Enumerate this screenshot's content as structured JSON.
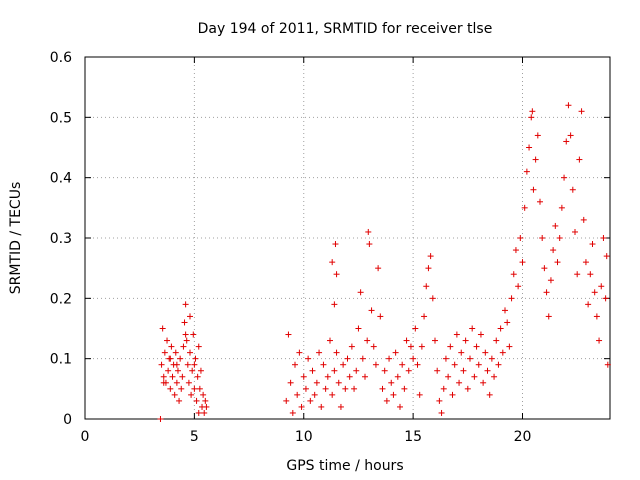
{
  "chart_data": {
    "type": "scatter",
    "title": "Day 194 of 2011, SRMTID for receiver tlse",
    "xlabel": "GPS time / hours",
    "ylabel": "SRMTID / TECUs",
    "xlim": [
      0,
      24
    ],
    "ylim": [
      0,
      0.6
    ],
    "xticks": [
      0,
      5,
      10,
      15,
      20
    ],
    "xtick_labels": [
      "0",
      "5",
      "10",
      "15",
      "20"
    ],
    "yticks": [
      0,
      0.1,
      0.2,
      0.3,
      0.4,
      0.5,
      0.6
    ],
    "ytick_labels": [
      "0",
      "0.1",
      "0.2",
      "0.3",
      "0.4",
      "0.5",
      "0.6"
    ],
    "grid": true,
    "marker": "+",
    "color": "#e00000",
    "series": [
      {
        "name": "SRMTID",
        "points": [
          [
            3.45,
            0.0
          ],
          [
            3.5,
            0.09
          ],
          [
            3.55,
            0.15
          ],
          [
            3.6,
            0.07
          ],
          [
            3.65,
            0.11
          ],
          [
            3.7,
            0.06
          ],
          [
            3.75,
            0.13
          ],
          [
            3.8,
            0.08
          ],
          [
            3.85,
            0.1
          ],
          [
            3.9,
            0.05
          ],
          [
            3.95,
            0.12
          ],
          [
            4.0,
            0.07
          ],
          [
            4.05,
            0.09
          ],
          [
            4.1,
            0.04
          ],
          [
            4.15,
            0.11
          ],
          [
            4.2,
            0.06
          ],
          [
            4.25,
            0.08
          ],
          [
            4.3,
            0.03
          ],
          [
            4.35,
            0.1
          ],
          [
            4.4,
            0.05
          ],
          [
            4.45,
            0.07
          ],
          [
            4.5,
            0.12
          ],
          [
            4.55,
            0.16
          ],
          [
            4.6,
            0.19
          ],
          [
            4.65,
            0.13
          ],
          [
            4.7,
            0.09
          ],
          [
            4.75,
            0.06
          ],
          [
            4.8,
            0.11
          ],
          [
            4.85,
            0.04
          ],
          [
            4.9,
            0.08
          ],
          [
            4.95,
            0.14
          ],
          [
            5.0,
            0.05
          ],
          [
            5.05,
            0.1
          ],
          [
            5.1,
            0.03
          ],
          [
            5.15,
            0.07
          ],
          [
            5.2,
            0.12
          ],
          [
            5.25,
            0.05
          ],
          [
            5.3,
            0.08
          ],
          [
            5.35,
            0.02
          ],
          [
            5.4,
            0.04
          ],
          [
            5.45,
            0.01
          ],
          [
            5.5,
            0.03
          ],
          [
            5.55,
            0.02
          ],
          [
            3.6,
            0.06
          ],
          [
            3.9,
            0.1
          ],
          [
            4.2,
            0.09
          ],
          [
            4.6,
            0.14
          ],
          [
            4.8,
            0.17
          ],
          [
            5.0,
            0.09
          ],
          [
            5.2,
            0.01
          ],
          [
            9.2,
            0.03
          ],
          [
            9.3,
            0.14
          ],
          [
            9.4,
            0.06
          ],
          [
            9.5,
            0.01
          ],
          [
            9.6,
            0.09
          ],
          [
            9.7,
            0.04
          ],
          [
            9.8,
            0.11
          ],
          [
            9.9,
            0.02
          ],
          [
            10.0,
            0.07
          ],
          [
            10.1,
            0.05
          ],
          [
            10.2,
            0.1
          ],
          [
            10.3,
            0.03
          ],
          [
            10.4,
            0.08
          ],
          [
            10.5,
            0.04
          ],
          [
            10.6,
            0.06
          ],
          [
            10.7,
            0.11
          ],
          [
            10.8,
            0.02
          ],
          [
            10.9,
            0.09
          ],
          [
            11.0,
            0.05
          ],
          [
            11.1,
            0.07
          ],
          [
            11.2,
            0.13
          ],
          [
            11.3,
            0.04
          ],
          [
            11.4,
            0.08
          ],
          [
            11.5,
            0.11
          ],
          [
            11.6,
            0.06
          ],
          [
            11.7,
            0.02
          ],
          [
            11.8,
            0.09
          ],
          [
            11.9,
            0.05
          ],
          [
            12.0,
            0.1
          ],
          [
            12.1,
            0.07
          ],
          [
            11.3,
            0.26
          ],
          [
            11.45,
            0.29
          ],
          [
            11.5,
            0.24
          ],
          [
            11.4,
            0.19
          ],
          [
            12.2,
            0.12
          ],
          [
            12.3,
            0.05
          ],
          [
            12.4,
            0.08
          ],
          [
            12.5,
            0.15
          ],
          [
            12.6,
            0.21
          ],
          [
            12.7,
            0.1
          ],
          [
            12.8,
            0.07
          ],
          [
            12.9,
            0.13
          ],
          [
            12.95,
            0.31
          ],
          [
            13.0,
            0.29
          ],
          [
            13.1,
            0.18
          ],
          [
            13.2,
            0.12
          ],
          [
            13.3,
            0.09
          ],
          [
            13.4,
            0.25
          ],
          [
            13.5,
            0.17
          ],
          [
            13.6,
            0.05
          ],
          [
            13.7,
            0.08
          ],
          [
            13.8,
            0.03
          ],
          [
            13.9,
            0.1
          ],
          [
            14.0,
            0.06
          ],
          [
            14.1,
            0.04
          ],
          [
            14.2,
            0.11
          ],
          [
            14.3,
            0.07
          ],
          [
            14.4,
            0.02
          ],
          [
            14.5,
            0.09
          ],
          [
            14.6,
            0.05
          ],
          [
            14.7,
            0.13
          ],
          [
            14.8,
            0.08
          ],
          [
            14.9,
            0.12
          ],
          [
            15.0,
            0.1
          ],
          [
            15.1,
            0.15
          ],
          [
            15.2,
            0.09
          ],
          [
            15.3,
            0.04
          ],
          [
            15.4,
            0.12
          ],
          [
            15.5,
            0.17
          ],
          [
            15.6,
            0.22
          ],
          [
            15.7,
            0.25
          ],
          [
            15.8,
            0.27
          ],
          [
            15.9,
            0.2
          ],
          [
            16.0,
            0.13
          ],
          [
            16.1,
            0.08
          ],
          [
            16.2,
            0.03
          ],
          [
            16.3,
            0.01
          ],
          [
            16.4,
            0.05
          ],
          [
            16.5,
            0.1
          ],
          [
            16.6,
            0.07
          ],
          [
            16.7,
            0.12
          ],
          [
            16.8,
            0.04
          ],
          [
            16.9,
            0.09
          ],
          [
            17.0,
            0.14
          ],
          [
            17.1,
            0.06
          ],
          [
            17.2,
            0.11
          ],
          [
            17.3,
            0.08
          ],
          [
            17.4,
            0.13
          ],
          [
            17.5,
            0.05
          ],
          [
            17.6,
            0.1
          ],
          [
            17.7,
            0.15
          ],
          [
            17.8,
            0.07
          ],
          [
            17.9,
            0.12
          ],
          [
            18.0,
            0.09
          ],
          [
            18.1,
            0.14
          ],
          [
            18.2,
            0.06
          ],
          [
            18.3,
            0.11
          ],
          [
            18.4,
            0.08
          ],
          [
            18.5,
            0.04
          ],
          [
            18.6,
            0.1
          ],
          [
            18.7,
            0.07
          ],
          [
            18.8,
            0.13
          ],
          [
            18.9,
            0.09
          ],
          [
            19.0,
            0.15
          ],
          [
            19.1,
            0.11
          ],
          [
            19.2,
            0.18
          ],
          [
            19.3,
            0.16
          ],
          [
            19.4,
            0.12
          ],
          [
            19.5,
            0.2
          ],
          [
            19.6,
            0.24
          ],
          [
            19.7,
            0.28
          ],
          [
            19.8,
            0.22
          ],
          [
            19.9,
            0.3
          ],
          [
            20.0,
            0.26
          ],
          [
            20.1,
            0.35
          ],
          [
            20.2,
            0.41
          ],
          [
            20.3,
            0.45
          ],
          [
            20.4,
            0.5
          ],
          [
            20.45,
            0.51
          ],
          [
            20.5,
            0.38
          ],
          [
            20.6,
            0.43
          ],
          [
            20.7,
            0.47
          ],
          [
            20.8,
            0.36
          ],
          [
            20.9,
            0.3
          ],
          [
            21.0,
            0.25
          ],
          [
            21.1,
            0.21
          ],
          [
            21.2,
            0.17
          ],
          [
            21.3,
            0.23
          ],
          [
            21.4,
            0.28
          ],
          [
            21.5,
            0.32
          ],
          [
            21.6,
            0.26
          ],
          [
            21.7,
            0.3
          ],
          [
            21.8,
            0.35
          ],
          [
            21.9,
            0.4
          ],
          [
            22.0,
            0.46
          ],
          [
            22.1,
            0.52
          ],
          [
            22.2,
            0.47
          ],
          [
            22.3,
            0.38
          ],
          [
            22.4,
            0.31
          ],
          [
            22.5,
            0.24
          ],
          [
            22.6,
            0.43
          ],
          [
            22.7,
            0.51
          ],
          [
            22.8,
            0.33
          ],
          [
            22.9,
            0.26
          ],
          [
            23.0,
            0.19
          ],
          [
            23.1,
            0.24
          ],
          [
            23.2,
            0.29
          ],
          [
            23.3,
            0.21
          ],
          [
            23.4,
            0.17
          ],
          [
            23.5,
            0.13
          ],
          [
            23.6,
            0.22
          ],
          [
            23.7,
            0.3
          ],
          [
            23.8,
            0.2
          ],
          [
            23.9,
            0.09
          ],
          [
            23.85,
            0.27
          ]
        ]
      }
    ]
  }
}
